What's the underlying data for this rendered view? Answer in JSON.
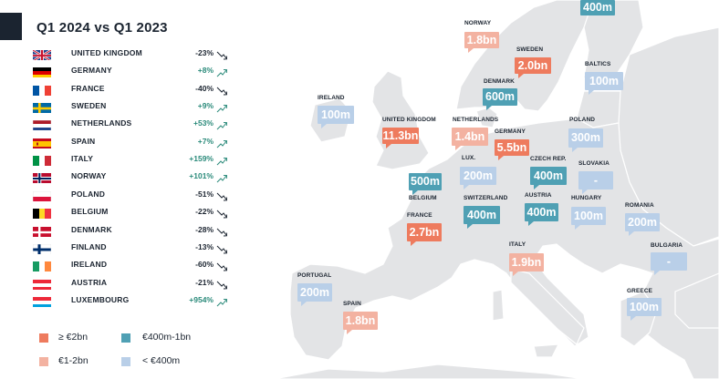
{
  "panel": {
    "title": "Q1 2024 vs Q1 2023",
    "rows": [
      {
        "country": "UNITED KINGDOM",
        "change": "-23%",
        "dir": "down",
        "flag": "uk-flag-icon"
      },
      {
        "country": "GERMANY",
        "change": "+8%",
        "dir": "up",
        "flag": "germany-flag-icon"
      },
      {
        "country": "FRANCE",
        "change": "-40%",
        "dir": "down",
        "flag": "france-flag-icon"
      },
      {
        "country": "SWEDEN",
        "change": "+9%",
        "dir": "up",
        "flag": "sweden-flag-icon"
      },
      {
        "country": "NETHERLANDS",
        "change": "+53%",
        "dir": "up",
        "flag": "netherlands-flag-icon"
      },
      {
        "country": "SPAIN",
        "change": "+7%",
        "dir": "up",
        "flag": "spain-flag-icon"
      },
      {
        "country": "ITALY",
        "change": "+159%",
        "dir": "up",
        "flag": "italy-flag-icon"
      },
      {
        "country": "NORWAY",
        "change": "+101%",
        "dir": "up",
        "flag": "norway-flag-icon"
      },
      {
        "country": "POLAND",
        "change": "-51%",
        "dir": "down",
        "flag": "poland-flag-icon"
      },
      {
        "country": "BELGIUM",
        "change": "-22%",
        "dir": "down",
        "flag": "belgium-flag-icon"
      },
      {
        "country": "DENMARK",
        "change": "-28%",
        "dir": "down",
        "flag": "denmark-flag-icon"
      },
      {
        "country": "FINLAND",
        "change": "-13%",
        "dir": "down",
        "flag": "finland-flag-icon"
      },
      {
        "country": "IRELAND",
        "change": "-60%",
        "dir": "down",
        "flag": "ireland-flag-icon"
      },
      {
        "country": "AUSTRIA",
        "change": "-21%",
        "dir": "down",
        "flag": "austria-flag-icon"
      },
      {
        "country": "LUXEMBOURG",
        "change": "+954%",
        "dir": "up",
        "flag": "luxembourg-flag-icon"
      }
    ]
  },
  "legend": [
    {
      "label": "≥ €2bn",
      "color": "#ee7b5e"
    },
    {
      "label": "€400m-1bn",
      "color": "#4fa0b4"
    },
    {
      "label": "€1-2bn",
      "color": "#f3b2a1"
    },
    {
      "label": "< €400m",
      "color": "#b9cfe8"
    }
  ],
  "colors": {
    "tier_2bn": "#ee7b5e",
    "tier_1_2bn": "#f3b2a1",
    "tier_400m_1bn": "#4fa0b4",
    "tier_lt_400m": "#b9cfe8",
    "positive": "#2a8a7a",
    "dark": "#1b2430"
  },
  "markers": [
    {
      "id": "finland",
      "name": "",
      "value": "400m",
      "tier": "tier_400m_1bn"
    },
    {
      "id": "norway",
      "name": "NORWAY",
      "value": "1.8bn",
      "tier": "tier_1_2bn"
    },
    {
      "id": "sweden",
      "name": "SWEDEN",
      "value": "2.0bn",
      "tier": "tier_2bn"
    },
    {
      "id": "baltics",
      "name": "BALTICS",
      "value": "100m",
      "tier": "tier_lt_400m"
    },
    {
      "id": "denmark",
      "name": "DENMARK",
      "value": "600m",
      "tier": "tier_400m_1bn"
    },
    {
      "id": "ireland",
      "name": "IRELAND",
      "value": "100m",
      "tier": "tier_lt_400m"
    },
    {
      "id": "united-kingdom",
      "name": "UNITED KINGDOM",
      "value": "11.3bn",
      "tier": "tier_2bn"
    },
    {
      "id": "netherlands",
      "name": "NETHERLANDS",
      "value": "1.4bn",
      "tier": "tier_1_2bn"
    },
    {
      "id": "germany",
      "name": "GERMANY",
      "value": "5.5bn",
      "tier": "tier_2bn"
    },
    {
      "id": "poland",
      "name": "POLAND",
      "value": "300m",
      "tier": "tier_lt_400m"
    },
    {
      "id": "luxembourg",
      "name": "LUX.",
      "value": "200m",
      "tier": "tier_lt_400m"
    },
    {
      "id": "czech",
      "name": "CZECH REP.",
      "value": "400m",
      "tier": "tier_400m_1bn"
    },
    {
      "id": "slovakia",
      "name": "SLOVAKIA",
      "value": "-",
      "tier": "tier_lt_400m"
    },
    {
      "id": "belgium",
      "name": "BELGIUM",
      "value": "500m",
      "tier": "tier_400m_1bn"
    },
    {
      "id": "switzerland",
      "name": "SWITZERLAND",
      "value": "400m",
      "tier": "tier_400m_1bn"
    },
    {
      "id": "austria",
      "name": "AUSTRIA",
      "value": "400m",
      "tier": "tier_400m_1bn"
    },
    {
      "id": "hungary",
      "name": "HUNGARY",
      "value": "100m",
      "tier": "tier_lt_400m"
    },
    {
      "id": "romania",
      "name": "ROMANIA",
      "value": "200m",
      "tier": "tier_lt_400m"
    },
    {
      "id": "france",
      "name": "FRANCE",
      "value": "2.7bn",
      "tier": "tier_2bn"
    },
    {
      "id": "italy",
      "name": "ITALY",
      "value": "1.9bn",
      "tier": "tier_1_2bn"
    },
    {
      "id": "bulgaria",
      "name": "BULGARIA",
      "value": "-",
      "tier": "tier_lt_400m"
    },
    {
      "id": "portugal",
      "name": "PORTUGAL",
      "value": "200m",
      "tier": "tier_lt_400m"
    },
    {
      "id": "spain",
      "name": "SPAIN",
      "value": "1.8bn",
      "tier": "tier_1_2bn"
    },
    {
      "id": "greece",
      "name": "GREECE",
      "value": "100m",
      "tier": "tier_lt_400m"
    }
  ]
}
